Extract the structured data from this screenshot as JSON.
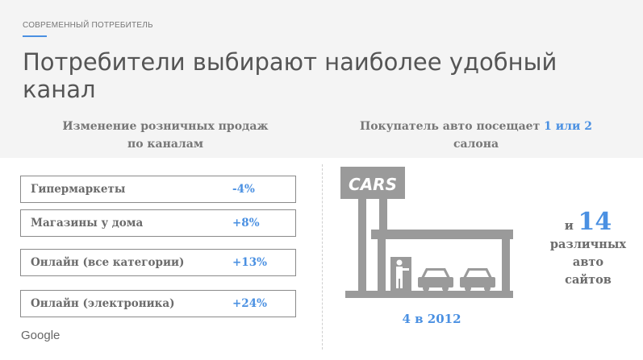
{
  "header": {
    "eyebrow": "СОВРЕМЕННЫЙ ПОТРЕБИТЕЛЬ",
    "title": "Потребители выбирают наиболее удобный канал"
  },
  "left_column": {
    "heading_line1": "Изменение розничных продаж",
    "heading_line2": "по каналам",
    "rows": [
      {
        "label": "Гипермаркеты",
        "value": "-4%"
      },
      {
        "label": "Магазины у дома",
        "value": "+8%"
      },
      {
        "label": "Онлайн (все категории)",
        "value": "+13%"
      },
      {
        "label": "Онлайн (электроника)",
        "value": "+24%"
      }
    ],
    "logo": "Google"
  },
  "right_column": {
    "heading_pre": "Покупатель авто посещает ",
    "heading_accent": "1 или 2",
    "heading_line2": "салона",
    "sign_text": "CARS",
    "caption": "4 в 2012",
    "sites_and": "и",
    "sites_number": "14",
    "sites_line1": "различных",
    "sites_line2": "авто",
    "sites_line3": "сайтов"
  },
  "colors": {
    "accent": "#4a90e2",
    "text_gray": "#6b6b6b",
    "band": "#f4f4f4",
    "illustration_gray": "#9a9a9a"
  },
  "icons": [
    "car-dealership-illustration",
    "google-logo"
  ]
}
